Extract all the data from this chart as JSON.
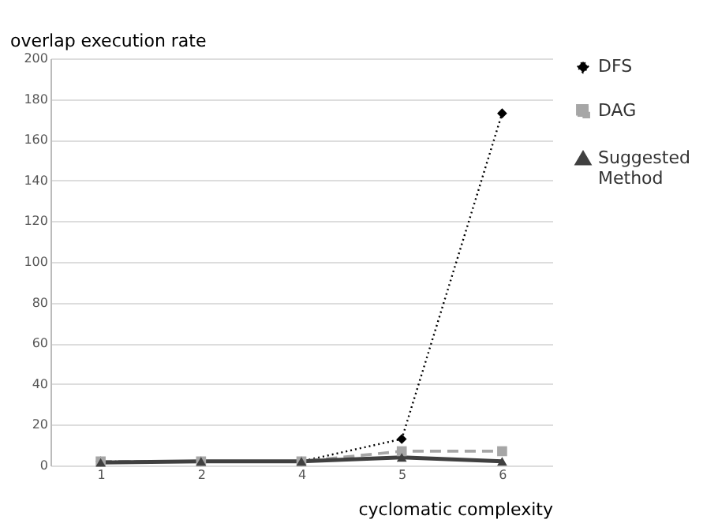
{
  "chart_data": {
    "type": "line",
    "xlabel": "cyclomatic complexity",
    "ylabel": "overlap execution rate",
    "categories": [
      "1",
      "2",
      "4",
      "5",
      "6"
    ],
    "series": [
      {
        "name": "DFS",
        "color": "#000000",
        "marker": "diamond",
        "line_style": "dotted",
        "values": [
          2,
          2,
          2,
          13,
          173
        ]
      },
      {
        "name": "DAG",
        "color": "#a6a6a6",
        "marker": "square",
        "line_style": "dashed",
        "values": [
          2,
          2,
          2,
          7,
          7
        ]
      },
      {
        "name": "Suggested Method",
        "color": "#404040",
        "marker": "triangle",
        "line_style": "solid",
        "values": [
          1.5,
          2,
          2,
          4,
          2
        ]
      }
    ],
    "ylim": [
      0,
      200
    ],
    "yticks": [
      0,
      20,
      40,
      60,
      80,
      100,
      120,
      140,
      160,
      180,
      200
    ],
    "grid": "y",
    "legend": "right"
  }
}
